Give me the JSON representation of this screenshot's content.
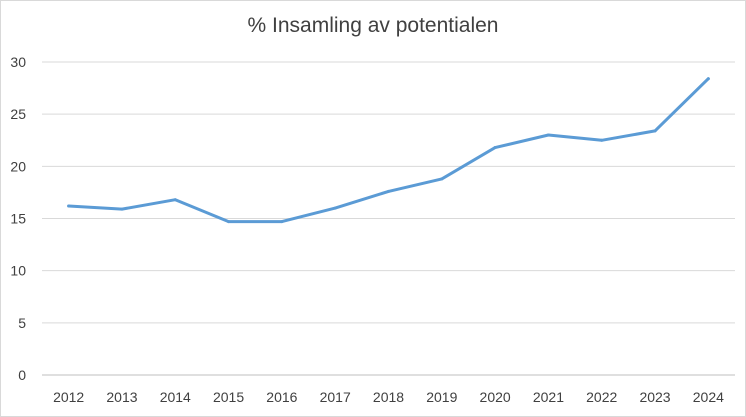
{
  "chart_data": {
    "type": "line",
    "title": "% Insamling av potentialen",
    "xlabel": "",
    "ylabel": "",
    "ylim": [
      0,
      30
    ],
    "yticks": [
      0,
      5,
      10,
      15,
      20,
      25,
      30
    ],
    "grid": true,
    "legend": "none",
    "categories": [
      "2012",
      "2013",
      "2014",
      "2015",
      "2016",
      "2017",
      "2018",
      "2019",
      "2020",
      "2021",
      "2022",
      "2023",
      "2024"
    ],
    "series": [
      {
        "name": "% Insamling av potentialen",
        "color": "#5b9bd5",
        "values": [
          16.2,
          15.9,
          16.8,
          14.7,
          14.7,
          16.0,
          17.6,
          18.8,
          21.8,
          23.0,
          22.5,
          23.4,
          28.4
        ]
      }
    ]
  }
}
